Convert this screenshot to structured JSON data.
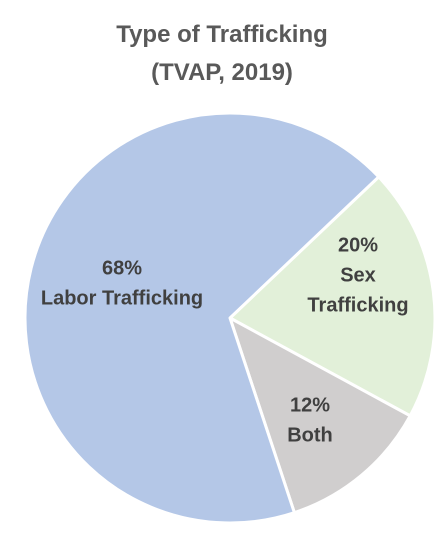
{
  "chart_data": {
    "type": "pie",
    "title_lines": [
      "Type of Trafficking",
      "(TVAP, 2019)"
    ],
    "slices": [
      {
        "name": "Labor Trafficking",
        "value": 68,
        "label_lines": [
          "68%",
          "Labor Trafficking"
        ],
        "color": "#B4C7E7"
      },
      {
        "name": "Sex Trafficking",
        "value": 20,
        "label_lines": [
          "20%",
          "Sex",
          "Trafficking"
        ],
        "color": "#E2F0D9"
      },
      {
        "name": "Both",
        "value": 12,
        "label_lines": [
          "12%",
          "Both"
        ],
        "color": "#D0CECE"
      }
    ],
    "legend": "none"
  }
}
